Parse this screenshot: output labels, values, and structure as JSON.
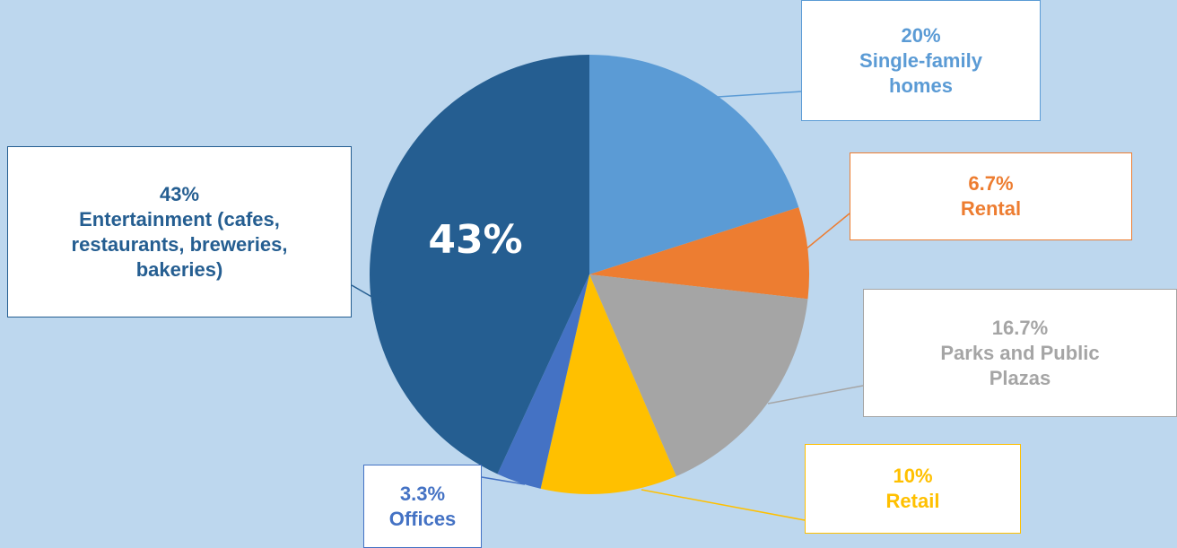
{
  "chart_data": {
    "type": "pie",
    "categories": [
      "Single-family homes",
      "Rental",
      "Parks and Public Plazas",
      "Retail",
      "Offices",
      "Entertainment (cafes, restaurants, breweries, bakeries)"
    ],
    "values": [
      20,
      6.7,
      16.7,
      10,
      3.3,
      43
    ],
    "value_labels": [
      "20%",
      "6.7%",
      "16.7%",
      "10%",
      "3.3%",
      "43%"
    ],
    "colors": [
      "#5b9bd5",
      "#ed7d31",
      "#a5a5a5",
      "#ffc000",
      "#4472c4",
      "#255e91"
    ]
  }
}
